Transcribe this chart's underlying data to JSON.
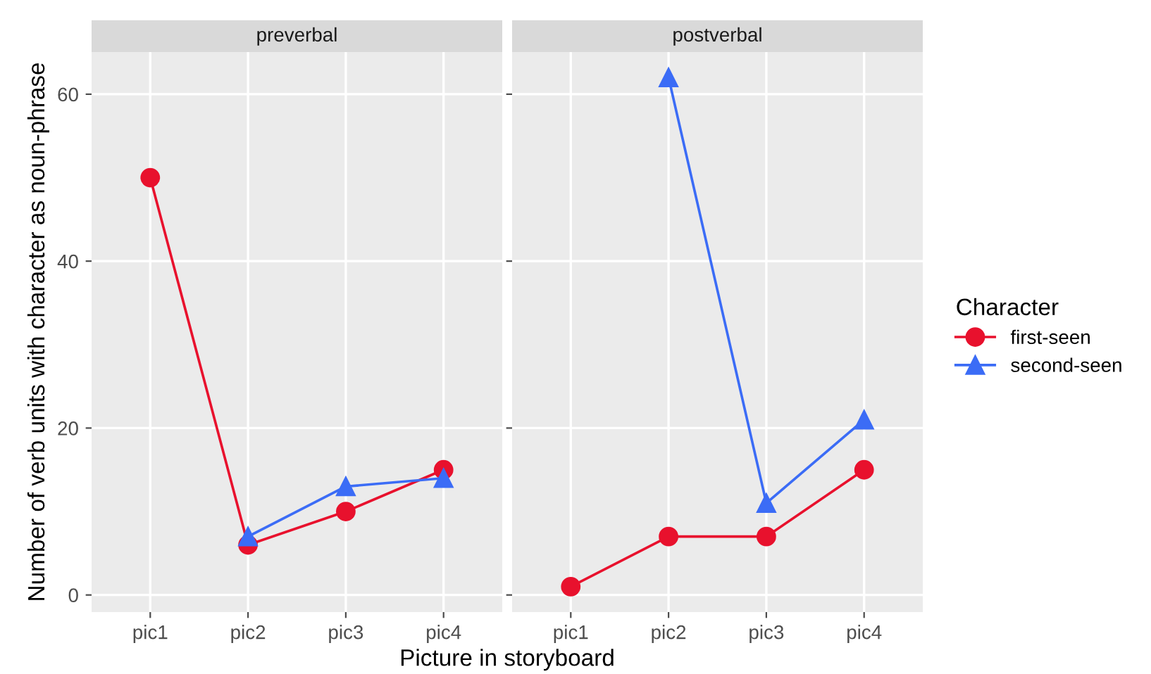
{
  "chart_data": [
    {
      "type": "line",
      "title": "preverbal",
      "xlabel": "Picture in storyboard",
      "ylabel": "Number of verb units with character as noun-phrase",
      "categories": [
        "pic1",
        "pic2",
        "pic3",
        "pic4"
      ],
      "ylim": [
        -2.05,
        65.05
      ],
      "yticks": [
        0,
        20,
        40,
        60
      ],
      "grid": true,
      "legend": "right",
      "legend_title": "Character",
      "series": [
        {
          "name": "first-seen",
          "color": "#e8112d",
          "marker": "circle",
          "values": [
            50,
            6,
            10,
            15
          ]
        },
        {
          "name": "second-seen",
          "color": "#3b6cf6",
          "marker": "triangle",
          "values": [
            null,
            7,
            13,
            14
          ]
        }
      ]
    },
    {
      "type": "line",
      "title": "postverbal",
      "categories": [
        "pic1",
        "pic2",
        "pic3",
        "pic4"
      ],
      "ylim": [
        -2.05,
        65.05
      ],
      "yticks": [
        0,
        20,
        40,
        60
      ],
      "grid": true,
      "tick_labels": "x",
      "series": [
        {
          "name": "first-seen",
          "color": "#e8112d",
          "marker": "circle",
          "values": [
            1,
            7,
            7,
            15
          ]
        },
        {
          "name": "second-seen",
          "color": "#3b6cf6",
          "marker": "triangle",
          "values": [
            null,
            62,
            11,
            21
          ]
        }
      ]
    }
  ]
}
